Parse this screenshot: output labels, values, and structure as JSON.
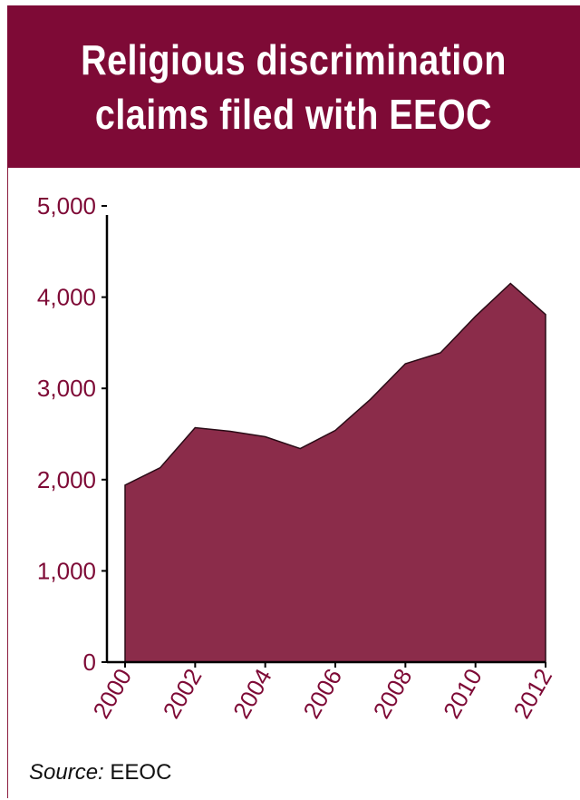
{
  "header": {
    "title_line1": "Religious discrimination",
    "title_line2": "claims filed with EEOC"
  },
  "source": {
    "label": "Source:",
    "value": "EEOC"
  },
  "colors": {
    "brand": "#7e0a36",
    "area_fill": "#8b2c4a",
    "axis": "#000000"
  },
  "chart_data": {
    "type": "area",
    "title": "Religious discrimination claims filed with EEOC",
    "x": [
      2000,
      2001,
      2002,
      2003,
      2004,
      2005,
      2006,
      2007,
      2008,
      2009,
      2010,
      2011,
      2012
    ],
    "values": [
      1940,
      2130,
      2570,
      2530,
      2470,
      2340,
      2540,
      2880,
      3270,
      3390,
      3790,
      4150,
      3810
    ],
    "xticks": [
      "2000",
      "2002",
      "2004",
      "2006",
      "2008",
      "2010",
      "2012"
    ],
    "yticks": [
      "0",
      "1,000",
      "2,000",
      "3,000",
      "4,000",
      "5,000"
    ],
    "ylim": [
      0,
      5000
    ],
    "xlim": [
      2000,
      2012
    ],
    "xlabel": "",
    "ylabel": "",
    "grid": false,
    "legend": "none"
  }
}
